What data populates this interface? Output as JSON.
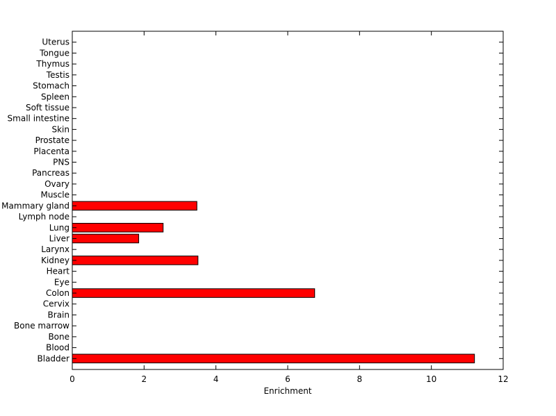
{
  "chart_data": {
    "type": "bar",
    "orientation": "horizontal",
    "title": "",
    "xlabel": "Enrichment",
    "ylabel": "",
    "xlim": [
      0,
      12
    ],
    "xticks": [
      0,
      2,
      4,
      6,
      8,
      10,
      12
    ],
    "grid": false,
    "categories": [
      "Bladder",
      "Blood",
      "Bone",
      "Bone marrow",
      "Brain",
      "Cervix",
      "Colon",
      "Eye",
      "Heart",
      "Kidney",
      "Larynx",
      "Liver",
      "Lung",
      "Lymph node",
      "Mammary gland",
      "Muscle",
      "Ovary",
      "Pancreas",
      "PNS",
      "Placenta",
      "Prostate",
      "Skin",
      "Small intestine",
      "Soft tissue",
      "Spleen",
      "Stomach",
      "Testis",
      "Thymus",
      "Tongue",
      "Uterus"
    ],
    "values": [
      11.2,
      0,
      0,
      0,
      0,
      0,
      6.75,
      0,
      0,
      3.5,
      0,
      1.85,
      2.53,
      0,
      3.47,
      0,
      0,
      0,
      0,
      0,
      0,
      0,
      0,
      0,
      0,
      0,
      0,
      0,
      0,
      0
    ],
    "bar_color": "#ff0000",
    "edge_color": "#000000"
  }
}
